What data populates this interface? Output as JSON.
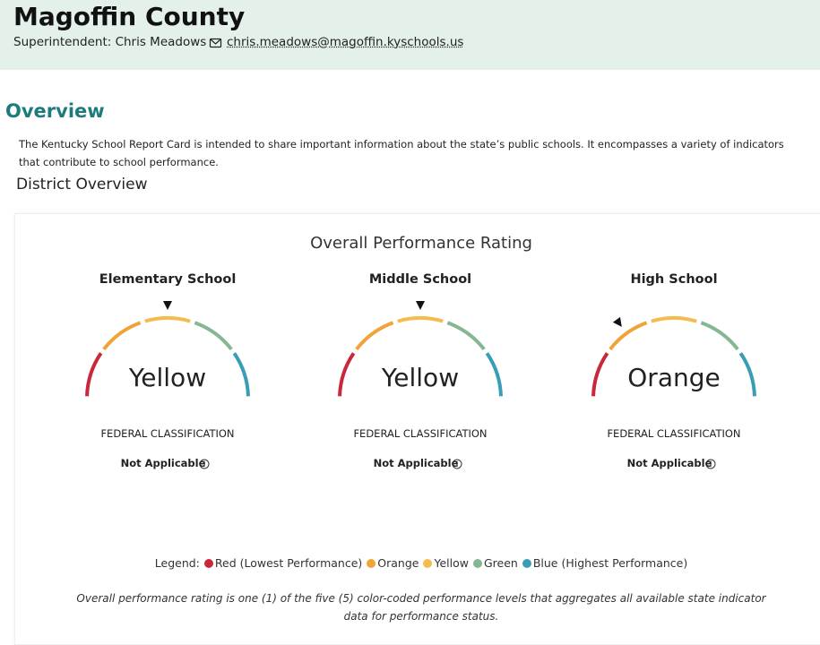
{
  "header": {
    "title": "Magoffin County",
    "superintendent": "Superintendent: Chris Meadows",
    "email": "chris.meadows@magoffin.kyschools.us"
  },
  "overview": {
    "heading": "Overview",
    "description": "The Kentucky School Report Card is intended to share important information about the state’s public schools. It encompasses a variety of indicators that contribute to school performance.",
    "subheading": "District Overview"
  },
  "rating_panel": {
    "title": "Overall Performance Rating",
    "gauges": [
      {
        "school": "Elementary School",
        "rating": "Yellow",
        "classification_label": "FEDERAL CLASSIFICATION",
        "classification": "Not Applicable"
      },
      {
        "school": "Middle School",
        "rating": "Yellow",
        "classification_label": "FEDERAL CLASSIFICATION",
        "classification": "Not Applicable"
      },
      {
        "school": "High School",
        "rating": "Orange",
        "classification_label": "FEDERAL CLASSIFICATION",
        "classification": "Not Applicable"
      }
    ],
    "legend": {
      "label": "Legend:",
      "items": [
        {
          "name": "Red (Lowest Performance)",
          "color": "#c8283a"
        },
        {
          "name": "Orange",
          "color": "#f0a437"
        },
        {
          "name": "Yellow",
          "color": "#f2bd4e"
        },
        {
          "name": "Green",
          "color": "#85b793"
        },
        {
          "name": "Blue (Highest Performance)",
          "color": "#3a9db6"
        }
      ]
    },
    "footnote": "Overall performance rating is one (1) of the five (5) color-coded performance levels that aggregates all available state indicator data for performance status."
  }
}
